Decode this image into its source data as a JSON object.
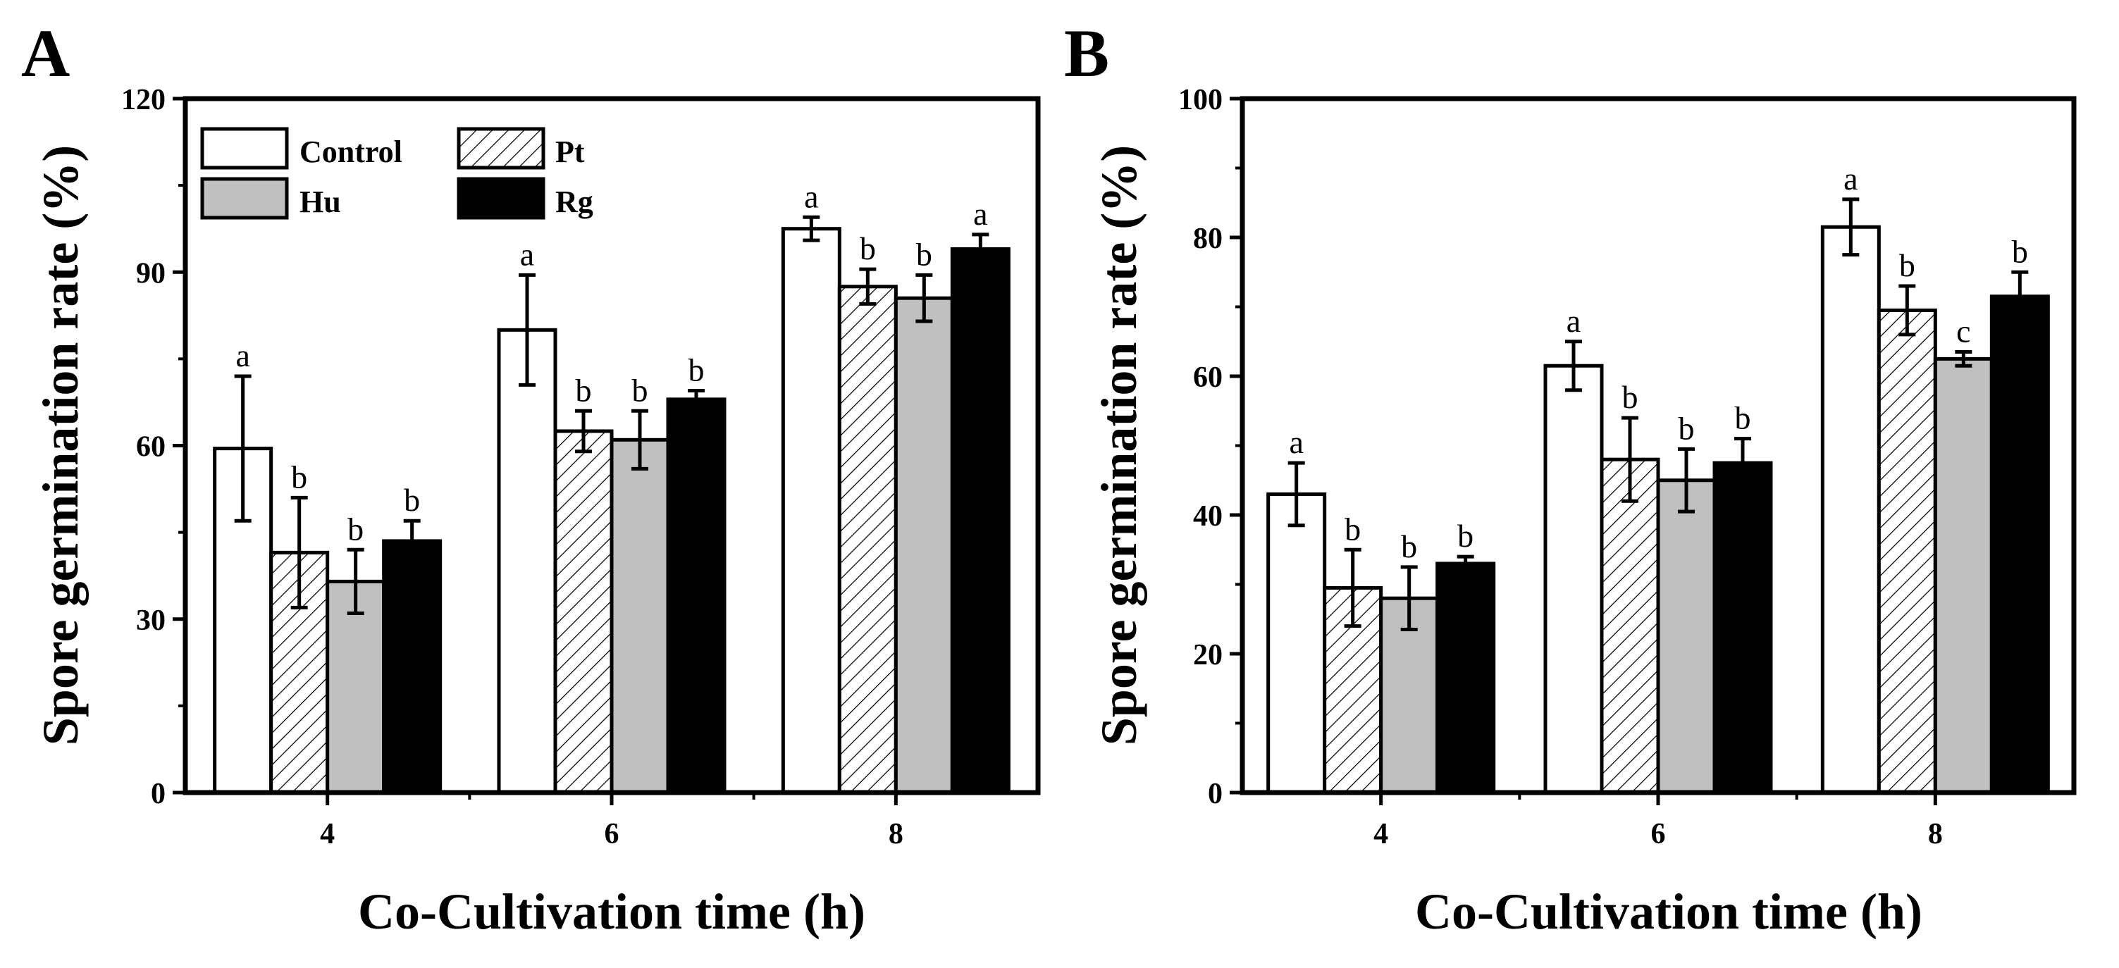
{
  "chart_data": [
    {
      "type": "bar",
      "panel_label": "A",
      "categories": [
        "4",
        "6",
        "8"
      ],
      "series": [
        {
          "name": "Control",
          "values": [
            59.5,
            80,
            97.5
          ],
          "errors": [
            12.5,
            9.5,
            2
          ],
          "letters": [
            "a",
            "a",
            "a"
          ]
        },
        {
          "name": "Pt",
          "values": [
            41.5,
            62.5,
            87.5
          ],
          "errors": [
            9.5,
            3.5,
            3
          ],
          "letters": [
            "b",
            "b",
            "b"
          ]
        },
        {
          "name": "Hu",
          "values": [
            36.5,
            61,
            85.5
          ],
          "errors": [
            5.5,
            5,
            4
          ],
          "letters": [
            "b",
            "b",
            "b"
          ]
        },
        {
          "name": "Rg",
          "values": [
            43.5,
            68,
            94
          ],
          "errors": [
            3.5,
            1.5,
            2.5
          ],
          "letters": [
            "b",
            "b",
            "a"
          ]
        }
      ],
      "xlabel": "Co-Cultivation time (h)",
      "ylabel": "Spore germination rate (%)",
      "ylim": [
        0,
        120
      ],
      "yticks": [
        0,
        30,
        60,
        90,
        120
      ],
      "legend": {
        "position": "top-left",
        "entries": [
          "Control",
          "Pt",
          "Hu",
          "Rg"
        ]
      }
    },
    {
      "type": "bar",
      "panel_label": "B",
      "categories": [
        "4",
        "6",
        "8"
      ],
      "series": [
        {
          "name": "Control",
          "values": [
            43,
            61.5,
            81.5
          ],
          "errors": [
            4.5,
            3.5,
            4
          ],
          "letters": [
            "a",
            "a",
            "a"
          ]
        },
        {
          "name": "Pt",
          "values": [
            29.5,
            48,
            69.5
          ],
          "errors": [
            5.5,
            6,
            3.5
          ],
          "letters": [
            "b",
            "b",
            "b"
          ]
        },
        {
          "name": "Hu",
          "values": [
            28,
            45,
            62.5
          ],
          "errors": [
            4.5,
            4.5,
            1
          ],
          "letters": [
            "b",
            "b",
            "c"
          ]
        },
        {
          "name": "Rg",
          "values": [
            33,
            47.5,
            71.5
          ],
          "errors": [
            1,
            3.5,
            3.5
          ],
          "letters": [
            "b",
            "b",
            "b"
          ]
        }
      ],
      "xlabel": "Co-Cultivation time (h)",
      "ylabel": "Spore germination rate (%)",
      "ylim": [
        0,
        100
      ],
      "yticks": [
        0,
        20,
        40,
        60,
        80,
        100
      ]
    }
  ]
}
